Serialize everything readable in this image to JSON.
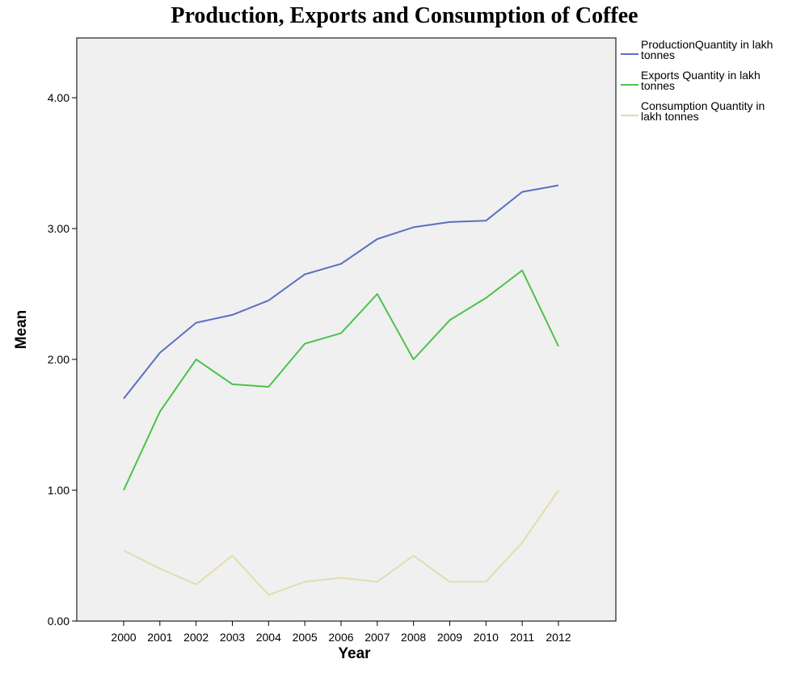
{
  "chart_data": {
    "type": "line",
    "title": "Production, Exports and Consumption of Coffee",
    "xlabel": "Year",
    "ylabel": "Mean",
    "x": [
      "2000",
      "2001",
      "2002",
      "2003",
      "2004",
      "2005",
      "2006",
      "2007",
      "2008",
      "2009",
      "2010",
      "2011",
      "2012"
    ],
    "ylim": [
      0,
      4.4
    ],
    "yticks": [
      "0.00",
      "1.00",
      "2.00",
      "3.00",
      "4.00"
    ],
    "grid": false,
    "legend_position": "right",
    "plot_background": "#f0f0f0",
    "series": [
      {
        "name": "ProductionQuantity in lakh tonnes",
        "legend_lines": [
          "ProductionQuantity in lakh",
          "tonnes"
        ],
        "color": "#5b6fc2",
        "values": [
          1.7,
          2.05,
          2.28,
          2.34,
          2.45,
          2.65,
          2.73,
          2.92,
          3.01,
          3.05,
          3.06,
          3.28,
          3.33
        ]
      },
      {
        "name": "Exports Quantity in lakh tonnes",
        "legend_lines": [
          "Exports Quantity in lakh",
          "tonnes"
        ],
        "color": "#4cc24a",
        "values": [
          1.0,
          1.6,
          2.0,
          1.81,
          1.79,
          2.12,
          2.2,
          2.5,
          2.0,
          2.3,
          2.47,
          2.68,
          2.1
        ]
      },
      {
        "name": "Consumption Quantity in lakh tonnes",
        "legend_lines": [
          "Consumption Quantity in",
          "lakh tonnes"
        ],
        "color": "#e3dcb0",
        "values": [
          0.54,
          0.4,
          0.28,
          0.5,
          0.2,
          0.3,
          0.33,
          0.3,
          0.5,
          0.3,
          0.3,
          0.6,
          1.0
        ]
      }
    ]
  }
}
